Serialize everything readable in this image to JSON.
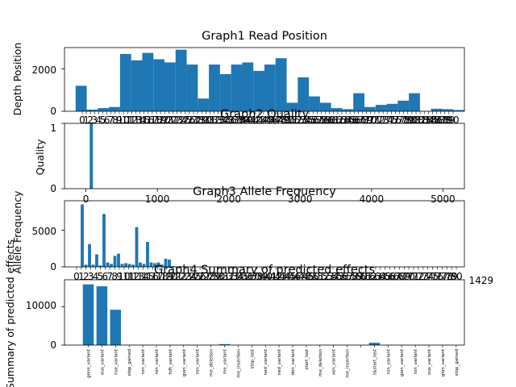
{
  "chart_data": [
    {
      "type": "bar",
      "title": "Graph1 Read Position",
      "xlabel": "",
      "ylabel": "Depth Position",
      "x": [
        3,
        5,
        7,
        9,
        11,
        13,
        15,
        17,
        19,
        21,
        23,
        25,
        27,
        29,
        31,
        33,
        35,
        37,
        39,
        41,
        43,
        45,
        47,
        49,
        51,
        53,
        55,
        57,
        59,
        61,
        63,
        65,
        67,
        69,
        71
      ],
      "values": [
        1200,
        80,
        150,
        200,
        2700,
        2400,
        2750,
        2450,
        2300,
        2900,
        2200,
        600,
        2200,
        1750,
        2200,
        2300,
        1900,
        2200,
        2500,
        400,
        1600,
        700,
        400,
        150,
        100,
        850,
        200,
        300,
        350,
        500,
        850,
        10,
        120,
        100,
        60
      ],
      "ylim": [
        0,
        3000
      ],
      "yticks": [
        "0",
        "2000"
      ]
    },
    {
      "type": "bar",
      "title": "Graph2 Quality",
      "xlabel": "",
      "ylabel": "Quality",
      "x": [
        75
      ],
      "values": [
        1
      ],
      "xlim": [
        0,
        5000
      ],
      "ylim": [
        0,
        1
      ],
      "xticks": [
        "0",
        "1000",
        "2000",
        "3000",
        "4000",
        "5000"
      ],
      "yticks": [
        "0",
        "1"
      ]
    },
    {
      "type": "bar",
      "title": "Graph3 Allele Frequency",
      "xlabel": "",
      "ylabel": "Allele Frequency",
      "x": [
        1,
        2,
        3,
        4,
        5,
        6,
        7,
        8,
        9,
        10,
        11,
        12,
        13,
        14,
        15,
        16,
        17,
        18,
        19,
        20,
        21,
        22,
        23,
        24,
        25,
        26,
        27,
        28,
        29,
        30,
        31,
        32,
        33,
        34
      ],
      "values": [
        8500,
        300,
        3100,
        300,
        1700,
        200,
        7200,
        600,
        400,
        1500,
        1800,
        400,
        500,
        400,
        300,
        5400,
        600,
        400,
        3400,
        600,
        500,
        600,
        300,
        1100,
        1000,
        100,
        50,
        100,
        80,
        60,
        40,
        30,
        20,
        10
      ],
      "ylim": [
        0,
        9000
      ],
      "yticks": [
        "0",
        "5000"
      ],
      "xticks_last": "1429"
    },
    {
      "type": "bar",
      "title": "Graph4 Summary of predicted effects",
      "xlabel": "",
      "ylabel": "Summary of predicted effects",
      "categories": [
        "gene_variant",
        "ous_variant",
        "nse_variant",
        "stop_gained",
        "ron_variant",
        "ron_variant",
        "hift_variant",
        "gion_variant",
        "ron_variant",
        "me_deletion",
        "me_variant",
        "me_insertion",
        "stop_lost",
        "ned_variant",
        "ned_variant",
        "don_variant",
        "start_lost",
        "me_deletion",
        "xon_variant",
        "me_insertion",
        "",
        "t&start_lost",
        "ron_variant",
        "gion_variant",
        "ron_variant",
        "ous_variant",
        "gion_variant",
        "stop_gained"
      ],
      "values": [
        15800,
        15300,
        9200,
        60,
        50,
        40,
        30,
        40,
        30,
        20,
        250,
        30,
        20,
        30,
        20,
        20,
        10,
        10,
        10,
        10,
        10,
        600,
        20,
        10,
        10,
        10,
        10,
        10
      ],
      "ylim": [
        0,
        17000
      ],
      "yticks": [
        "0",
        "10000"
      ]
    }
  ]
}
